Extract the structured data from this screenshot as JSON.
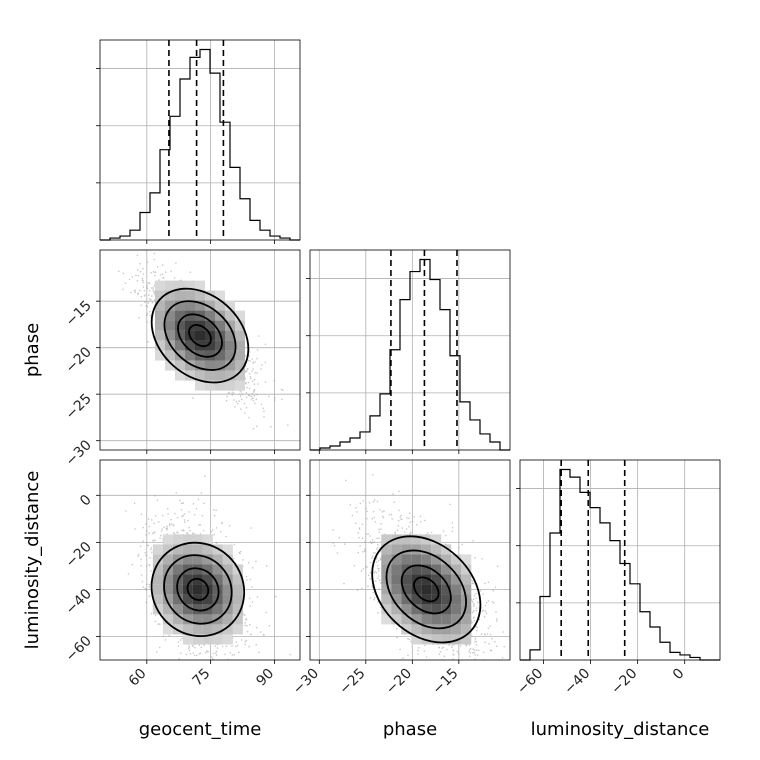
{
  "chart_data": {
    "type": "corner",
    "parameters": [
      "geocent_time",
      "phase",
      "luminosity_distance"
    ],
    "axis_labels": {
      "geocent_time": "geocent_time",
      "phase": "phase",
      "luminosity_distance": "luminosity_distance"
    },
    "ranges": {
      "geocent_time": [
        49,
        96
      ],
      "phase": [
        -31,
        -9.5
      ],
      "luminosity_distance": [
        -70,
        15
      ]
    },
    "ticks": {
      "geocent_time": [
        60,
        75,
        90
      ],
      "phase": [
        -30,
        -25,
        -20,
        -15
      ],
      "phase_y": [
        -15,
        -20,
        -25,
        -30
      ],
      "luminosity_distance": [
        -60,
        -40,
        -20,
        0
      ],
      "luminosity_distance_y": [
        0,
        -20,
        -40,
        -60
      ]
    },
    "tick_labels": {
      "geocent_time": [
        "60",
        "75",
        "90"
      ],
      "phase": [
        "−30",
        "−25",
        "−20",
        "−15"
      ],
      "phase_y": [
        "−15",
        "−20",
        "−25",
        "−30"
      ],
      "luminosity_distance": [
        "−60",
        "−40",
        "−20",
        "0"
      ],
      "luminosity_distance_y": [
        "0",
        "−20",
        "−40",
        "−60"
      ]
    },
    "quantiles": {
      "geocent_time": [
        65.2,
        71.7,
        78.0
      ],
      "phase": [
        -22.3,
        -18.7,
        -15.2
      ],
      "luminosity_distance": [
        -52.5,
        -41.0,
        -25.5
      ]
    },
    "histograms": {
      "geocent_time": {
        "bin_edges": [
          49,
          51.35,
          53.7,
          56.05,
          58.4,
          60.75,
          63.1,
          65.45,
          67.8,
          70.15,
          72.5,
          74.85,
          77.2,
          79.55,
          81.9,
          84.25,
          86.6,
          88.95,
          91.3,
          93.65,
          96
        ],
        "counts": [
          0,
          1,
          2,
          5,
          14,
          24,
          46,
          63,
          82,
          93,
          97,
          85,
          60,
          37,
          21,
          10,
          5,
          2,
          1,
          0
        ]
      },
      "phase": {
        "bin_edges": [
          -31,
          -29.925,
          -28.85,
          -27.775,
          -26.7,
          -25.625,
          -24.55,
          -23.475,
          -22.4,
          -21.325,
          -20.25,
          -19.175,
          -18.1,
          -17.025,
          -15.95,
          -14.875,
          -13.8,
          -12.725,
          -11.65,
          -10.575,
          -9.5
        ],
        "counts": [
          0,
          1,
          2,
          4,
          6,
          9,
          17,
          28,
          50,
          75,
          89,
          95,
          85,
          70,
          47,
          24,
          15,
          8,
          4,
          0
        ]
      },
      "luminosity_distance": {
        "bin_edges": [
          -70,
          -65.75,
          -61.5,
          -57.25,
          -53,
          -48.75,
          -44.5,
          -40.25,
          -36,
          -31.75,
          -27.5,
          -23.25,
          -19,
          -14.75,
          -10.5,
          -6.25,
          -2,
          2.25,
          6.5,
          10.75,
          15
        ],
        "counts": [
          0,
          4,
          25,
          50,
          75,
          72,
          66,
          60,
          54,
          47,
          38,
          30,
          19,
          13,
          7,
          3,
          2,
          1,
          0,
          0
        ]
      }
    },
    "scatter_2d": [
      {
        "x": "geocent_time",
        "y": "phase",
        "center": [
          72.5,
          -18.7
        ],
        "sd": [
          6.2,
          3.0
        ],
        "corr": -0.8
      },
      {
        "x": "geocent_time",
        "y": "luminosity_distance",
        "center": [
          72.0,
          -40.0
        ],
        "sd": [
          5.5,
          14.0
        ],
        "corr": -0.35
      },
      {
        "x": "phase",
        "y": "luminosity_distance",
        "center": [
          -18.5,
          -40.0
        ],
        "sd": [
          3.2,
          14.0
        ],
        "corr": -0.55
      }
    ],
    "grid": true
  }
}
